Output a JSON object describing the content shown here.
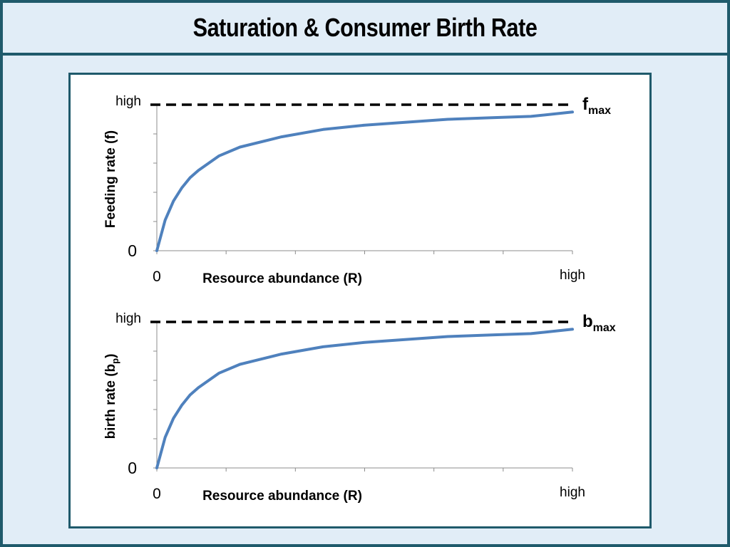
{
  "title": "Saturation & Consumer Birth Rate",
  "colors": {
    "frame": "#1f5a6b",
    "background": "#e1edf7",
    "curve": "#4f81bd",
    "asymptote": "#000000"
  },
  "chart_data": [
    {
      "type": "line",
      "title": "",
      "xlabel": "Resource abundance (R)",
      "ylabel": "Feeding rate (f)",
      "x_ticks": [
        "0",
        "high"
      ],
      "y_ticks": [
        "0",
        "high"
      ],
      "xlim": [
        0,
        1
      ],
      "ylim": [
        0,
        1
      ],
      "grid": false,
      "asymptote": {
        "base": "f",
        "sub": "max",
        "y": 1
      },
      "series": [
        {
          "x": [
            0,
            0.02,
            0.04,
            0.06,
            0.08,
            0.1,
            0.15,
            0.2,
            0.3,
            0.4,
            0.5,
            0.6,
            0.7,
            0.8,
            0.9,
            1.0
          ],
          "values": [
            0,
            0.21,
            0.34,
            0.43,
            0.5,
            0.55,
            0.65,
            0.71,
            0.78,
            0.83,
            0.86,
            0.88,
            0.9,
            0.91,
            0.92,
            0.95
          ]
        }
      ]
    },
    {
      "type": "line",
      "title": "",
      "xlabel": "Resource abundance (R)",
      "ylabel": {
        "base": "birth rate (b",
        "sub": "p",
        "end": ")"
      },
      "x_ticks": [
        "0",
        "high"
      ],
      "y_ticks": [
        "0",
        "high"
      ],
      "xlim": [
        0,
        1
      ],
      "ylim": [
        0,
        1
      ],
      "grid": false,
      "asymptote": {
        "base": "b",
        "sub": "max",
        "y": 1
      },
      "series": [
        {
          "x": [
            0,
            0.02,
            0.04,
            0.06,
            0.08,
            0.1,
            0.15,
            0.2,
            0.3,
            0.4,
            0.5,
            0.6,
            0.7,
            0.8,
            0.9,
            1.0
          ],
          "values": [
            0,
            0.21,
            0.34,
            0.43,
            0.5,
            0.55,
            0.65,
            0.71,
            0.78,
            0.83,
            0.86,
            0.88,
            0.9,
            0.91,
            0.92,
            0.95
          ]
        }
      ]
    }
  ]
}
